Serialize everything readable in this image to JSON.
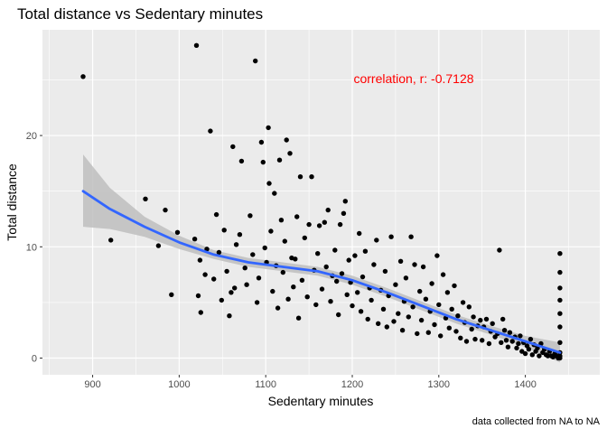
{
  "chart_data": {
    "type": "scatter",
    "title": "Total distance vs Sedentary minutes",
    "xlabel": "Sedentary minutes",
    "ylabel": "Total distance",
    "caption": "data collected from NA to NA",
    "annotation": "correlation, r: -0.7128",
    "xlim": [
      842,
      1486
    ],
    "ylim": [
      -1.5,
      29.5
    ],
    "x_ticks": [
      900,
      1000,
      1100,
      1200,
      1300,
      1400
    ],
    "y_ticks": [
      0,
      10,
      20
    ],
    "grid": true,
    "colors": {
      "panel": "#ebebeb",
      "grid": "#ffffff",
      "points": "#000000",
      "smooth": "#3366ff",
      "ribbon": "#bebebe",
      "annotation": "#ff0000"
    },
    "points": [
      [
        889,
        25.3
      ],
      [
        921,
        10.6
      ],
      [
        961,
        14.3
      ],
      [
        976,
        10.1
      ],
      [
        984,
        13.3
      ],
      [
        991,
        5.7
      ],
      [
        998,
        11.3
      ],
      [
        1018,
        10.7
      ],
      [
        1020,
        28.1
      ],
      [
        1022,
        5.6
      ],
      [
        1024,
        8.8
      ],
      [
        1025,
        4.1
      ],
      [
        1030,
        7.5
      ],
      [
        1032,
        9.8
      ],
      [
        1036,
        20.4
      ],
      [
        1040,
        7.1
      ],
      [
        1043,
        12.9
      ],
      [
        1046,
        9.5
      ],
      [
        1049,
        5.2
      ],
      [
        1052,
        11.5
      ],
      [
        1055,
        7.8
      ],
      [
        1058,
        3.8
      ],
      [
        1060,
        5.9
      ],
      [
        1062,
        19.0
      ],
      [
        1064,
        6.3
      ],
      [
        1066,
        10.2
      ],
      [
        1070,
        11.1
      ],
      [
        1072,
        17.7
      ],
      [
        1076,
        8.1
      ],
      [
        1078,
        6.6
      ],
      [
        1082,
        12.8
      ],
      [
        1085,
        9.3
      ],
      [
        1088,
        26.7
      ],
      [
        1090,
        5.0
      ],
      [
        1092,
        7.2
      ],
      [
        1095,
        19.4
      ],
      [
        1097,
        17.6
      ],
      [
        1099,
        9.9
      ],
      [
        1101,
        8.6
      ],
      [
        1103,
        20.7
      ],
      [
        1104,
        15.7
      ],
      [
        1106,
        11.4
      ],
      [
        1108,
        6.0
      ],
      [
        1110,
        14.8
      ],
      [
        1112,
        8.3
      ],
      [
        1114,
        4.5
      ],
      [
        1116,
        17.8
      ],
      [
        1118,
        12.4
      ],
      [
        1120,
        7.7
      ],
      [
        1122,
        10.5
      ],
      [
        1124,
        19.6
      ],
      [
        1126,
        5.3
      ],
      [
        1128,
        18.4
      ],
      [
        1130,
        9.0
      ],
      [
        1132,
        6.4
      ],
      [
        1134,
        8.9
      ],
      [
        1136,
        12.7
      ],
      [
        1138,
        3.6
      ],
      [
        1140,
        16.3
      ],
      [
        1142,
        7.0
      ],
      [
        1145,
        10.8
      ],
      [
        1148,
        5.5
      ],
      [
        1150,
        12.0
      ],
      [
        1153,
        16.3
      ],
      [
        1156,
        7.9
      ],
      [
        1158,
        4.8
      ],
      [
        1160,
        9.4
      ],
      [
        1162,
        11.9
      ],
      [
        1165,
        6.2
      ],
      [
        1168,
        12.2
      ],
      [
        1170,
        8.2
      ],
      [
        1172,
        13.3
      ],
      [
        1175,
        5.1
      ],
      [
        1177,
        7.4
      ],
      [
        1180,
        9.7
      ],
      [
        1182,
        6.9
      ],
      [
        1184,
        3.9
      ],
      [
        1186,
        12.0
      ],
      [
        1188,
        7.6
      ],
      [
        1190,
        13.0
      ],
      [
        1192,
        14.1
      ],
      [
        1194,
        5.7
      ],
      [
        1196,
        8.8
      ],
      [
        1198,
        6.8
      ],
      [
        1200,
        4.7
      ],
      [
        1203,
        9.2
      ],
      [
        1206,
        5.9
      ],
      [
        1208,
        11.2
      ],
      [
        1210,
        4.2
      ],
      [
        1212,
        7.3
      ],
      [
        1215,
        9.6
      ],
      [
        1218,
        3.5
      ],
      [
        1220,
        6.3
      ],
      [
        1222,
        5.2
      ],
      [
        1225,
        8.4
      ],
      [
        1228,
        10.6
      ],
      [
        1230,
        3.1
      ],
      [
        1233,
        6.1
      ],
      [
        1236,
        4.4
      ],
      [
        1238,
        7.8
      ],
      [
        1240,
        2.8
      ],
      [
        1242,
        5.6
      ],
      [
        1245,
        10.9
      ],
      [
        1248,
        3.3
      ],
      [
        1250,
        6.6
      ],
      [
        1253,
        4.0
      ],
      [
        1256,
        8.7
      ],
      [
        1258,
        2.5
      ],
      [
        1260,
        5.1
      ],
      [
        1262,
        7.2
      ],
      [
        1265,
        3.7
      ],
      [
        1268,
        10.9
      ],
      [
        1270,
        4.6
      ],
      [
        1272,
        8.4
      ],
      [
        1275,
        2.2
      ],
      [
        1278,
        6.0
      ],
      [
        1280,
        3.4
      ],
      [
        1282,
        8.2
      ],
      [
        1285,
        5.3
      ],
      [
        1288,
        2.3
      ],
      [
        1290,
        4.2
      ],
      [
        1292,
        6.7
      ],
      [
        1295,
        3.0
      ],
      [
        1298,
        9.2
      ],
      [
        1300,
        4.8
      ],
      [
        1302,
        2.0
      ],
      [
        1305,
        7.5
      ],
      [
        1308,
        3.6
      ],
      [
        1310,
        5.9
      ],
      [
        1312,
        2.7
      ],
      [
        1315,
        4.4
      ],
      [
        1318,
        6.5
      ],
      [
        1320,
        2.4
      ],
      [
        1322,
        3.8
      ],
      [
        1325,
        1.8
      ],
      [
        1328,
        5.0
      ],
      [
        1330,
        3.2
      ],
      [
        1332,
        1.5
      ],
      [
        1335,
        4.6
      ],
      [
        1338,
        2.6
      ],
      [
        1340,
        3.7
      ],
      [
        1342,
        1.7
      ],
      [
        1345,
        2.9
      ],
      [
        1348,
        3.4
      ],
      [
        1350,
        1.6
      ],
      [
        1352,
        2.8
      ],
      [
        1355,
        3.5
      ],
      [
        1358,
        1.3
      ],
      [
        1360,
        2.4
      ],
      [
        1362,
        3.1
      ],
      [
        1365,
        1.9
      ],
      [
        1368,
        2.2
      ],
      [
        1370,
        9.7
      ],
      [
        1372,
        1.4
      ],
      [
        1374,
        3.5
      ],
      [
        1376,
        2.5
      ],
      [
        1378,
        1.6
      ],
      [
        1380,
        1.0
      ],
      [
        1382,
        2.3
      ],
      [
        1385,
        1.5
      ],
      [
        1388,
        1.9
      ],
      [
        1390,
        0.9
      ],
      [
        1392,
        1.3
      ],
      [
        1394,
        2.0
      ],
      [
        1396,
        0.6
      ],
      [
        1398,
        1.4
      ],
      [
        1400,
        0.4
      ],
      [
        1402,
        1.1
      ],
      [
        1404,
        0.8
      ],
      [
        1406,
        1.7
      ],
      [
        1408,
        0.3
      ],
      [
        1410,
        1.2
      ],
      [
        1412,
        0.6
      ],
      [
        1414,
        0.9
      ],
      [
        1416,
        0.2
      ],
      [
        1418,
        1.3
      ],
      [
        1420,
        0.5
      ],
      [
        1422,
        0.8
      ],
      [
        1424,
        0.3
      ],
      [
        1426,
        0.2
      ],
      [
        1428,
        0.6
      ],
      [
        1430,
        0.2
      ],
      [
        1432,
        0.1
      ],
      [
        1434,
        0.4
      ],
      [
        1436,
        0.2
      ],
      [
        1438,
        0.0
      ],
      [
        1440,
        0.0
      ],
      [
        1440,
        0.2
      ],
      [
        1440,
        0.5
      ],
      [
        1440,
        1.4
      ],
      [
        1440,
        2.8
      ],
      [
        1440,
        4.0
      ],
      [
        1440,
        5.2
      ],
      [
        1440,
        6.3
      ],
      [
        1440,
        7.7
      ],
      [
        1440,
        9.4
      ]
    ],
    "smooth_line": {
      "x": [
        889,
        920,
        960,
        1000,
        1040,
        1080,
        1120,
        1160,
        1200,
        1240,
        1280,
        1320,
        1360,
        1400,
        1440
      ],
      "y": [
        15.0,
        13.4,
        11.8,
        10.4,
        9.3,
        8.6,
        8.2,
        7.8,
        7.0,
        5.9,
        4.7,
        3.5,
        2.5,
        1.5,
        0.5
      ],
      "lower": [
        11.8,
        11.6,
        10.9,
        9.8,
        8.9,
        8.2,
        7.8,
        7.4,
        6.6,
        5.5,
        4.3,
        3.1,
        2.1,
        1.0,
        -0.4
      ],
      "upper": [
        18.3,
        15.3,
        12.7,
        11.0,
        9.7,
        9.0,
        8.6,
        8.2,
        7.4,
        6.3,
        5.1,
        3.9,
        2.9,
        2.0,
        1.4
      ]
    }
  }
}
